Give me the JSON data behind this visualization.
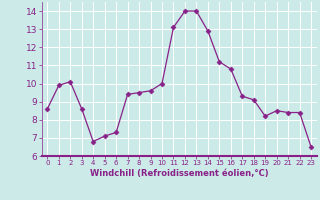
{
  "x": [
    0,
    1,
    2,
    3,
    4,
    5,
    6,
    7,
    8,
    9,
    10,
    11,
    12,
    13,
    14,
    15,
    16,
    17,
    18,
    19,
    20,
    21,
    22,
    23
  ],
  "y": [
    8.6,
    9.9,
    10.1,
    8.6,
    6.8,
    7.1,
    7.3,
    9.4,
    9.5,
    9.6,
    10.0,
    13.1,
    14.0,
    14.0,
    12.9,
    11.2,
    10.8,
    9.3,
    9.1,
    8.2,
    8.5,
    8.4,
    8.4,
    6.5
  ],
  "line_color": "#882288",
  "marker": "D",
  "marker_size": 2.5,
  "bg_color": "#cceae8",
  "grid_color": "#ffffff",
  "xlabel": "Windchill (Refroidissement éolien,°C)",
  "ylim": [
    6,
    14.5
  ],
  "yticks": [
    6,
    7,
    8,
    9,
    10,
    11,
    12,
    13,
    14
  ],
  "xlim": [
    -0.5,
    23.5
  ],
  "xticks": [
    0,
    1,
    2,
    3,
    4,
    5,
    6,
    7,
    8,
    9,
    10,
    11,
    12,
    13,
    14,
    15,
    16,
    17,
    18,
    19,
    20,
    21,
    22,
    23
  ],
  "tick_color": "#882288",
  "label_color": "#882288",
  "spine_color": "#882288",
  "xlabel_fontsize": 6.0,
  "xtick_fontsize": 5.0,
  "ytick_fontsize": 6.5
}
